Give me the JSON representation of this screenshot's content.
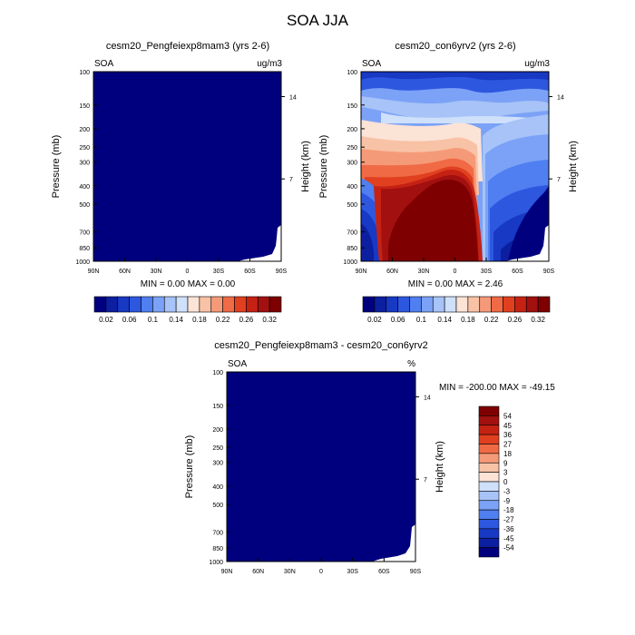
{
  "figure": {
    "title": "SOA JJA"
  },
  "chart_data": [
    {
      "type": "heatmap",
      "title": "cesm20_Pengfeiexp8mam3 (yrs 2-6)",
      "left_label": "SOA",
      "units": "ug/m3",
      "xlabel": "",
      "ylabel": "Pressure (mb)",
      "y2label": "Height (km)",
      "x_ticks": [
        "90N",
        "60N",
        "30N",
        "0",
        "30S",
        "60S",
        "90S"
      ],
      "y_ticks": [
        "100",
        "150",
        "200",
        "250",
        "300",
        "400",
        "500",
        "700",
        "850",
        "1000"
      ],
      "y_tick_values": [
        100,
        150,
        200,
        250,
        300,
        400,
        500,
        700,
        850,
        1000
      ],
      "y2_ticks": [
        "14",
        "7"
      ],
      "y2_tick_values": [
        14,
        7
      ],
      "ylim": [
        1000,
        100
      ],
      "xlim": [
        90,
        -90
      ],
      "stats": "MIN =   0.00   MAX =   0.00",
      "field": "uniform 0.00 (lowest colour bin) across the domain"
    },
    {
      "type": "heatmap",
      "title": "cesm20_con6yrv2 (yrs 2-6)",
      "left_label": "SOA",
      "units": "ug/m3",
      "xlabel": "",
      "ylabel": "Pressure (mb)",
      "y2label": "Height (km)",
      "x_ticks": [
        "90N",
        "60N",
        "30N",
        "0",
        "30S",
        "60S",
        "90S"
      ],
      "y_ticks": [
        "100",
        "150",
        "200",
        "250",
        "300",
        "400",
        "500",
        "700",
        "850",
        "1000"
      ],
      "y_tick_values": [
        100,
        150,
        200,
        250,
        300,
        400,
        500,
        700,
        850,
        1000
      ],
      "y2_ticks": [
        "14",
        "7"
      ],
      "y2_tick_values": [
        14,
        7
      ],
      "ylim": [
        1000,
        100
      ],
      "xlim": [
        90,
        -90
      ],
      "stats": "MIN =   0.00   MAX =   2.46",
      "field": "max (>0.32) in lower troposphere between ~80N and 30S, decreasing upward and toward the south pole"
    },
    {
      "type": "heatmap",
      "title": "cesm20_Pengfeiexp8mam3 - cesm20_con6yrv2",
      "left_label": "SOA",
      "units": "%",
      "xlabel": "",
      "ylabel": "Pressure (mb)",
      "y2label": "Height (km)",
      "x_ticks": [
        "90N",
        "60N",
        "30N",
        "0",
        "30S",
        "60S",
        "90S"
      ],
      "y_ticks": [
        "100",
        "150",
        "200",
        "250",
        "300",
        "400",
        "500",
        "700",
        "850",
        "1000"
      ],
      "y_tick_values": [
        100,
        150,
        200,
        250,
        300,
        400,
        500,
        700,
        850,
        1000
      ],
      "y2_ticks": [
        "14",
        "7"
      ],
      "y2_tick_values": [
        14,
        7
      ],
      "ylim": [
        1000,
        100
      ],
      "xlim": [
        90,
        -90
      ],
      "stats": "MIN = -200.00  MAX = -49.15",
      "field": "uniformly below -54 (lowest colour bin)"
    }
  ],
  "colorbar_top": {
    "labels": [
      "0.02",
      "0.06",
      "0.1",
      "0.14",
      "0.18",
      "0.22",
      "0.26",
      "0.32"
    ],
    "colors": [
      "#00007f",
      "#0b1fa0",
      "#1739c4",
      "#2e57e0",
      "#4f7ff0",
      "#7ba2f6",
      "#a7c3f8",
      "#cfe0fb",
      "#fbe3d6",
      "#f8c2a6",
      "#f59a78",
      "#f06a45",
      "#e0401f",
      "#c52214",
      "#a21010",
      "#7e0000"
    ]
  },
  "colorbar_diff": {
    "labels": [
      "54",
      "45",
      "36",
      "27",
      "18",
      "9",
      "3",
      "0",
      "-3",
      "-9",
      "-18",
      "-27",
      "-36",
      "-45",
      "-54"
    ],
    "colors": [
      "#7e0000",
      "#a21010",
      "#c52214",
      "#e0401f",
      "#f06a45",
      "#f59a78",
      "#f8c2a6",
      "#fbe3d6",
      "#cfe0fb",
      "#a7c3f8",
      "#7ba2f6",
      "#4f7ff0",
      "#2e57e0",
      "#1739c4",
      "#0b1fa0",
      "#00007f"
    ]
  }
}
